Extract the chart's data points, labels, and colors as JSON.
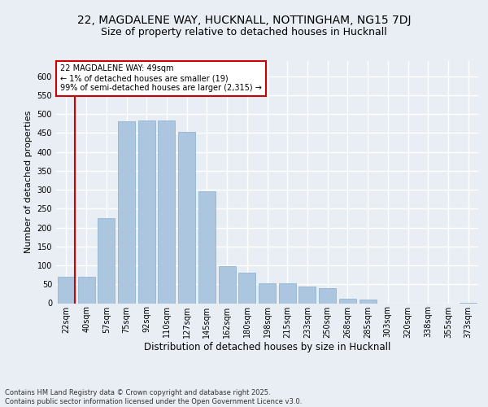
{
  "title1": "22, MAGDALENE WAY, HUCKNALL, NOTTINGHAM, NG15 7DJ",
  "title2": "Size of property relative to detached houses in Hucknall",
  "xlabel": "Distribution of detached houses by size in Hucknall",
  "ylabel": "Number of detached properties",
  "categories": [
    "22sqm",
    "40sqm",
    "57sqm",
    "75sqm",
    "92sqm",
    "110sqm",
    "127sqm",
    "145sqm",
    "162sqm",
    "180sqm",
    "198sqm",
    "215sqm",
    "233sqm",
    "250sqm",
    "268sqm",
    "285sqm",
    "303sqm",
    "320sqm",
    "338sqm",
    "355sqm",
    "373sqm"
  ],
  "values": [
    70,
    70,
    225,
    480,
    483,
    483,
    453,
    295,
    98,
    80,
    53,
    53,
    45,
    40,
    11,
    10,
    0,
    0,
    0,
    0,
    2
  ],
  "bar_color": "#adc6e0",
  "bar_edge_color": "#85aecf",
  "vline_x_index": 0,
  "vline_color": "#cc0000",
  "annotation_text": "22 MAGDALENE WAY: 49sqm\n← 1% of detached houses are smaller (19)\n99% of semi-detached houses are larger (2,315) →",
  "annotation_box_color": "#ffffff",
  "annotation_box_edge_color": "#cc0000",
  "ylim": [
    0,
    640
  ],
  "yticks": [
    0,
    50,
    100,
    150,
    200,
    250,
    300,
    350,
    400,
    450,
    500,
    550,
    600
  ],
  "background_color": "#e8eef4",
  "grid_color": "#ffffff",
  "footer_text": "Contains HM Land Registry data © Crown copyright and database right 2025.\nContains public sector information licensed under the Open Government Licence v3.0.",
  "title1_fontsize": 10,
  "title2_fontsize": 9,
  "xlabel_fontsize": 8.5,
  "ylabel_fontsize": 8,
  "tick_fontsize": 7,
  "annotation_fontsize": 7,
  "footer_fontsize": 6
}
